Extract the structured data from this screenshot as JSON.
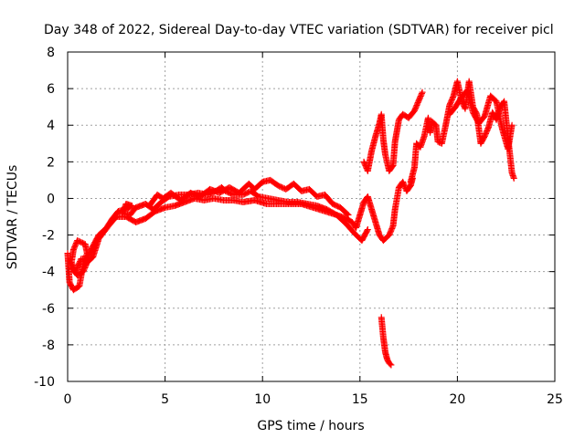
{
  "chart_data": {
    "type": "scatter",
    "title": "Day 348 of 2022, Sidereal Day-to-day VTEC variation (SDTVAR) for receiver picl",
    "xlabel": "GPS time / hours",
    "ylabel": "SDTVAR / TECUs",
    "xlim": [
      0,
      25
    ],
    "ylim": [
      -10,
      8
    ],
    "xticks": [
      0,
      5,
      10,
      15,
      20,
      25
    ],
    "yticks": [
      -10,
      -8,
      -6,
      -4,
      -2,
      0,
      2,
      4,
      6,
      8
    ],
    "xtick_labels": [
      "0",
      "5",
      "10",
      "15",
      "20",
      "25"
    ],
    "ytick_labels": [
      "-10",
      "-8",
      "-6",
      "-4",
      "-2",
      "0",
      "2",
      "4",
      "6",
      "8"
    ],
    "grid": true,
    "marker": "+",
    "color": "#ff0000",
    "series": [
      {
        "name": "SDTVAR",
        "segments": [
          [
            [
              0.0,
              -3.0
            ],
            [
              0.1,
              -4.6
            ],
            [
              0.3,
              -5.0
            ],
            [
              0.6,
              -4.8
            ],
            [
              0.8,
              -3.6
            ],
            [
              1.0,
              -3.0
            ],
            [
              0.9,
              -2.5
            ],
            [
              0.5,
              -2.3
            ],
            [
              0.3,
              -2.8
            ],
            [
              0.2,
              -3.5
            ],
            [
              0.4,
              -4.0
            ],
            [
              0.7,
              -3.3
            ],
            [
              1.0,
              -3.3
            ],
            [
              1.3,
              -2.6
            ],
            [
              1.6,
              -2.0
            ],
            [
              2.0,
              -1.6
            ],
            [
              2.3,
              -1.1
            ],
            [
              2.6,
              -0.7
            ],
            [
              3.0,
              -0.6
            ],
            [
              3.3,
              -0.4
            ],
            [
              3.0,
              -0.3
            ],
            [
              2.8,
              -0.8
            ],
            [
              3.2,
              -0.9
            ],
            [
              3.5,
              -0.5
            ],
            [
              4.0,
              -0.3
            ],
            [
              4.4,
              -0.6
            ],
            [
              4.8,
              -0.2
            ],
            [
              5.2,
              0.1
            ],
            [
              5.7,
              0.2
            ],
            [
              6.2,
              0.2
            ],
            [
              6.7,
              0.3
            ],
            [
              7.2,
              0.2
            ],
            [
              7.6,
              0.4
            ],
            [
              7.9,
              0.6
            ],
            [
              8.1,
              0.4
            ],
            [
              8.5,
              0.2
            ],
            [
              9.0,
              0.2
            ],
            [
              9.4,
              0.4
            ],
            [
              9.8,
              0.1
            ],
            [
              10.3,
              0.0
            ],
            [
              10.8,
              -0.1
            ],
            [
              11.3,
              -0.2
            ],
            [
              11.8,
              -0.2
            ],
            [
              12.3,
              -0.3
            ],
            [
              12.8,
              -0.4
            ],
            [
              13.3,
              -0.6
            ],
            [
              13.8,
              -0.9
            ],
            [
              14.3,
              -1.1
            ],
            [
              14.6,
              -1.3
            ],
            [
              14.8,
              -1.6
            ],
            [
              15.0,
              -0.9
            ],
            [
              15.2,
              -0.2
            ],
            [
              15.4,
              0.1
            ],
            [
              15.6,
              -0.6
            ],
            [
              15.8,
              -1.3
            ],
            [
              16.0,
              -2.0
            ],
            [
              16.2,
              -2.3
            ],
            [
              16.5,
              -2.0
            ],
            [
              16.7,
              -1.5
            ],
            [
              16.8,
              -0.6
            ],
            [
              17.0,
              0.6
            ],
            [
              17.2,
              0.9
            ],
            [
              17.4,
              0.4
            ],
            [
              17.6,
              0.7
            ],
            [
              17.7,
              1.1
            ]
          ],
          [
            [
              0.2,
              -3.8
            ],
            [
              0.5,
              -4.2
            ],
            [
              0.8,
              -4.0
            ],
            [
              1.0,
              -3.5
            ],
            [
              1.3,
              -3.2
            ],
            [
              1.6,
              -2.2
            ],
            [
              2.1,
              -1.5
            ],
            [
              2.5,
              -1.0
            ],
            [
              3.0,
              -1.0
            ],
            [
              3.5,
              -1.3
            ],
            [
              4.0,
              -1.1
            ],
            [
              4.5,
              -0.7
            ],
            [
              5.0,
              -0.5
            ],
            [
              5.5,
              -0.4
            ],
            [
              6.0,
              -0.2
            ],
            [
              6.5,
              0.0
            ],
            [
              7.0,
              -0.1
            ],
            [
              7.5,
              0.0
            ],
            [
              8.0,
              -0.1
            ],
            [
              8.5,
              -0.1
            ],
            [
              9.0,
              -0.2
            ],
            [
              9.6,
              -0.1
            ],
            [
              10.2,
              -0.3
            ],
            [
              10.8,
              -0.3
            ],
            [
              11.4,
              -0.3
            ],
            [
              12.0,
              -0.3
            ],
            [
              12.6,
              -0.5
            ],
            [
              13.2,
              -0.7
            ],
            [
              13.8,
              -0.9
            ],
            [
              14.3,
              -1.4
            ],
            [
              14.8,
              -2.0
            ],
            [
              15.1,
              -2.3
            ],
            [
              15.4,
              -1.7
            ]
          ],
          [
            [
              4.2,
              -0.4
            ],
            [
              4.6,
              0.2
            ],
            [
              4.9,
              0.0
            ],
            [
              5.3,
              0.3
            ],
            [
              5.8,
              -0.1
            ],
            [
              6.3,
              0.3
            ],
            [
              6.8,
              0.1
            ],
            [
              7.3,
              0.5
            ],
            [
              7.8,
              0.3
            ],
            [
              8.3,
              0.6
            ],
            [
              8.8,
              0.3
            ],
            [
              9.3,
              0.8
            ],
            [
              9.6,
              0.5
            ],
            [
              10.0,
              0.9
            ],
            [
              10.4,
              1.0
            ],
            [
              10.8,
              0.7
            ],
            [
              11.2,
              0.5
            ],
            [
              11.6,
              0.8
            ],
            [
              12.0,
              0.4
            ],
            [
              12.4,
              0.5
            ],
            [
              12.8,
              0.1
            ],
            [
              13.2,
              0.2
            ],
            [
              13.6,
              -0.3
            ],
            [
              14.0,
              -0.5
            ],
            [
              14.4,
              -0.9
            ]
          ],
          [
            [
              15.2,
              2.0
            ],
            [
              15.4,
              1.5
            ],
            [
              15.6,
              2.6
            ],
            [
              15.8,
              3.4
            ],
            [
              16.0,
              4.1
            ],
            [
              16.1,
              4.6
            ],
            [
              16.2,
              3.2
            ],
            [
              16.3,
              2.4
            ],
            [
              16.5,
              1.5
            ],
            [
              16.7,
              1.8
            ],
            [
              16.8,
              3.1
            ],
            [
              17.0,
              4.3
            ],
            [
              17.2,
              4.6
            ],
            [
              17.5,
              4.4
            ],
            [
              17.8,
              4.8
            ],
            [
              18.0,
              5.3
            ],
            [
              18.2,
              5.8
            ]
          ],
          [
            [
              17.6,
              0.9
            ],
            [
              17.8,
              1.7
            ],
            [
              17.9,
              3.0
            ],
            [
              18.1,
              2.8
            ],
            [
              18.3,
              3.4
            ],
            [
              18.5,
              4.4
            ],
            [
              18.6,
              3.6
            ],
            [
              18.7,
              4.2
            ],
            [
              18.9,
              4.0
            ],
            [
              19.0,
              3.1
            ],
            [
              19.2,
              3.0
            ],
            [
              19.4,
              4.0
            ],
            [
              19.6,
              5.1
            ],
            [
              19.8,
              5.6
            ],
            [
              20.0,
              6.4
            ],
            [
              20.2,
              5.4
            ],
            [
              20.4,
              4.9
            ],
            [
              20.6,
              6.4
            ],
            [
              20.8,
              5.0
            ],
            [
              21.0,
              4.6
            ],
            [
              21.2,
              3.0
            ],
            [
              21.4,
              3.4
            ],
            [
              21.6,
              3.9
            ],
            [
              21.8,
              4.7
            ],
            [
              22.0,
              4.3
            ],
            [
              22.2,
              5.0
            ],
            [
              22.4,
              5.3
            ],
            [
              22.6,
              3.3
            ],
            [
              22.8,
              1.4
            ],
            [
              22.9,
              1.1
            ]
          ],
          [
            [
              19.6,
              4.6
            ],
            [
              19.9,
              5.0
            ],
            [
              20.2,
              5.5
            ],
            [
              20.5,
              5.9
            ],
            [
              20.8,
              4.7
            ],
            [
              21.1,
              4.1
            ],
            [
              21.4,
              4.5
            ],
            [
              21.7,
              5.6
            ],
            [
              22.0,
              5.3
            ],
            [
              22.3,
              3.8
            ],
            [
              22.6,
              2.7
            ],
            [
              22.8,
              4.0
            ]
          ],
          [
            [
              16.1,
              -6.5
            ],
            [
              16.2,
              -7.6
            ],
            [
              16.3,
              -8.4
            ],
            [
              16.4,
              -8.8
            ],
            [
              16.5,
              -9.0
            ],
            [
              16.6,
              -9.1
            ]
          ]
        ]
      }
    ]
  }
}
